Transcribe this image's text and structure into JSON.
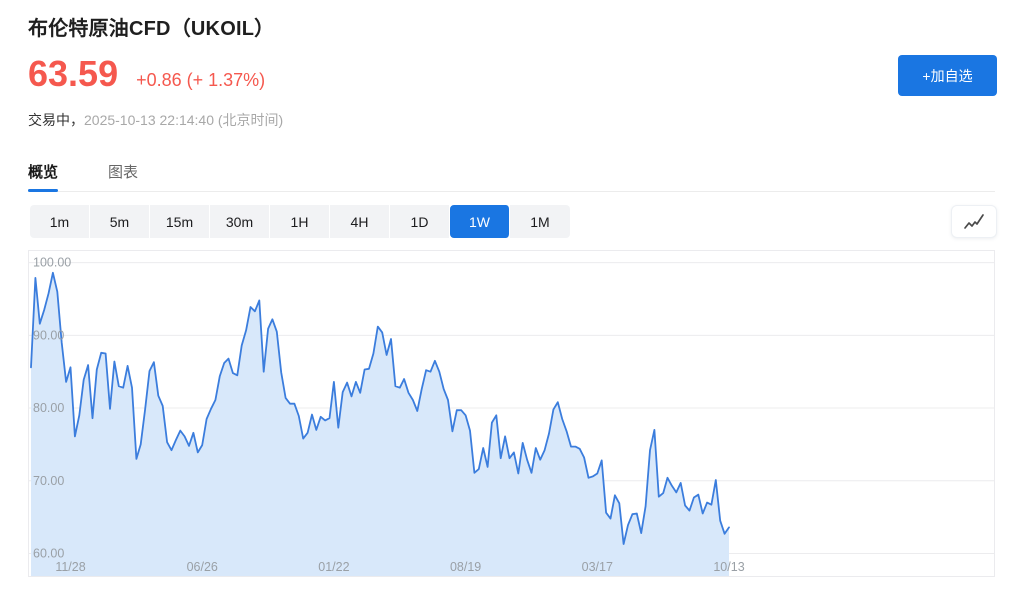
{
  "header": {
    "title": "布伦特原油CFD（UKOIL）",
    "price": "63.59",
    "change": "+0.86 (+ 1.37%)",
    "status_label": "交易中，",
    "timestamp": "2025-10-13 22:14:40 (北京时间)",
    "add_watchlist_label": "+加自选"
  },
  "tabs": [
    {
      "label": "概览",
      "active": true
    },
    {
      "label": "图表",
      "active": false
    }
  ],
  "timeframes": {
    "options": [
      "1m",
      "5m",
      "15m",
      "30m",
      "1H",
      "4H",
      "1D",
      "1W",
      "1M"
    ],
    "active": "1W"
  },
  "colors": {
    "accent_blue": "#1a76e2",
    "price_red": "#f5584e",
    "line_blue": "#3b7ddd",
    "fill_blue": "#d8e8fa",
    "grid": "#ececee",
    "tick_text": "#9aa0a6"
  },
  "chart_data": {
    "type": "area",
    "title": "布伦特原油CFD (UKOIL) 1W",
    "xlabel": "",
    "ylabel": "",
    "grid": true,
    "ylim": [
      56.9,
      101.6
    ],
    "y_ticks": [
      {
        "label": "100.00",
        "value": 100
      },
      {
        "label": "90.00",
        "value": 90
      },
      {
        "label": "80.00",
        "value": 80
      },
      {
        "label": "70.00",
        "value": 70
      },
      {
        "label": "60.00",
        "value": 60
      }
    ],
    "x_ticks": [
      {
        "label": "11/28",
        "index": 9
      },
      {
        "label": "06/26",
        "index": 39
      },
      {
        "label": "01/22",
        "index": 69
      },
      {
        "label": "08/19",
        "index": 99
      },
      {
        "label": "03/17",
        "index": 129
      },
      {
        "label": "10/13",
        "index": 159
      }
    ],
    "values": [
      85.6,
      97.9,
      91.6,
      93.5,
      95.8,
      98.6,
      96.0,
      89.0,
      83.6,
      85.6,
      76.1,
      79.0,
      83.9,
      85.9,
      78.6,
      85.3,
      87.6,
      87.5,
      79.9,
      86.4,
      83.0,
      82.8,
      85.8,
      82.8,
      73.0,
      75.0,
      79.8,
      85.1,
      86.3,
      81.7,
      80.3,
      75.3,
      74.2,
      75.6,
      76.9,
      76.1,
      74.8,
      76.6,
      73.9,
      74.9,
      78.5,
      79.9,
      81.1,
      84.4,
      86.2,
      86.8,
      84.8,
      84.5,
      88.6,
      90.7,
      93.9,
      93.3,
      94.8,
      85.0,
      90.9,
      92.2,
      90.5,
      84.9,
      81.4,
      80.6,
      80.6,
      78.9,
      75.8,
      76.6,
      79.1,
      77.0,
      78.8,
      78.3,
      78.6,
      83.6,
      77.3,
      82.2,
      83.5,
      81.6,
      83.6,
      82.1,
      85.3,
      85.4,
      87.5,
      91.2,
      90.4,
      87.3,
      89.5,
      83.0,
      82.8,
      84.0,
      82.1,
      81.1,
      79.6,
      82.6,
      85.2,
      85.0,
      86.5,
      85.0,
      82.6,
      81.1,
      76.8,
      79.7,
      79.7,
      79.0,
      76.9,
      71.1,
      71.6,
      74.5,
      71.9,
      78.0,
      79.0,
      73.1,
      76.1,
      73.1,
      73.9,
      71.0,
      75.2,
      72.9,
      71.1,
      74.5,
      72.9,
      74.2,
      76.5,
      79.8,
      80.8,
      78.5,
      76.8,
      74.7,
      74.7,
      74.4,
      73.2,
      70.4,
      70.6,
      71.0,
      72.8,
      65.6,
      64.8,
      68.0,
      66.9,
      61.3,
      63.9,
      65.4,
      65.5,
      62.8,
      66.5,
      74.2,
      77.0,
      67.8,
      68.3,
      70.4,
      69.3,
      68.4,
      69.7,
      66.6,
      65.9,
      67.7,
      68.1,
      65.5,
      67.0,
      66.7,
      70.1,
      64.5,
      62.7,
      63.59
    ]
  }
}
